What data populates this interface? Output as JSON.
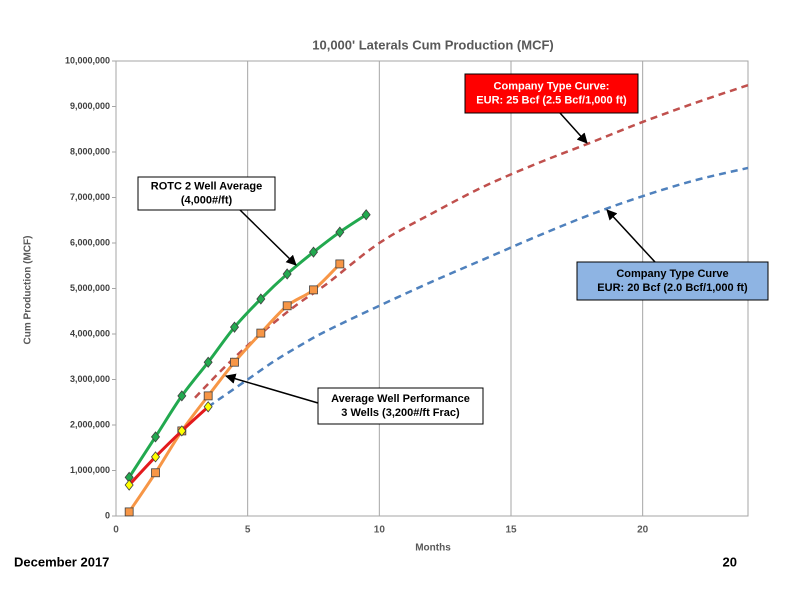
{
  "chart_data": {
    "type": "line",
    "title": "10,000' Laterals Cum Production (MCF)",
    "x_label": "Months",
    "y_label": "Cum Production (MCF)",
    "xlim": [
      0,
      24
    ],
    "xticks": [
      0,
      5,
      10,
      15,
      20
    ],
    "ylim": [
      0,
      10000000
    ],
    "yticks": [
      0,
      {
        "value": 1000000,
        "label": "1,000,000"
      },
      {
        "value": 2000000,
        "label": "2,000,000"
      },
      {
        "value": 3000000,
        "label": "3,000,000"
      },
      {
        "value": 4000000,
        "label": "4,000,000"
      },
      {
        "value": 5000000,
        "label": "5,000,000"
      },
      {
        "value": 6000000,
        "label": "6,000,000"
      },
      {
        "value": 7000000,
        "label": "7,000,000"
      },
      {
        "value": 8000000,
        "label": "8,000,000"
      },
      {
        "value": 9000000,
        "label": "9,000,000"
      },
      {
        "value": 10000000,
        "label": "10,000,000"
      }
    ],
    "grid": "x",
    "series": [
      {
        "color": "#c0504d",
        "dashed": true,
        "x": [
          3,
          4,
          5,
          6,
          7,
          8,
          10,
          12,
          14,
          16,
          18,
          20,
          22,
          24
        ],
        "values": [
          2600000,
          3200000,
          3750000,
          4250000,
          4700000,
          5100000,
          6000000,
          6650000,
          7250000,
          7750000,
          8200000,
          8660000,
          9080000,
          9470000
        ]
      },
      {
        "color": "#4f81bd",
        "dashed": true,
        "x": [
          3.5,
          4,
          5,
          6,
          7,
          8,
          10,
          12,
          14,
          16,
          18,
          20,
          22,
          24
        ],
        "values": [
          2400000,
          2600000,
          3000000,
          3400000,
          3750000,
          4070000,
          4620000,
          5150000,
          5650000,
          6150000,
          6620000,
          7030000,
          7380000,
          7650000
        ]
      },
      {
        "color": "#22a94f",
        "marker": "diamond",
        "marker_color": "#22a94f",
        "x": [
          0.5,
          1.5,
          2.5,
          3.5,
          4.5,
          5.5,
          6.5,
          7.5,
          8.5,
          9.5
        ],
        "values": [
          850000,
          1740000,
          2640000,
          3380000,
          4150000,
          4770000,
          5320000,
          5800000,
          6240000,
          6620000
        ]
      },
      {
        "color": "#f79646",
        "marker": "square",
        "marker_color": "#f79646",
        "x": [
          0.5,
          1.5,
          2.5,
          3.5,
          4.5,
          5.5,
          6.5,
          7.5,
          8.5
        ],
        "values": [
          90000,
          950000,
          1870000,
          2640000,
          3380000,
          4020000,
          4620000,
          4970000,
          5540000
        ]
      },
      {
        "color": "#e31a1c",
        "marker": "diamond",
        "marker_color": "#ffff00",
        "x": [
          0.5,
          1.5,
          2.5,
          3.5
        ],
        "values": [
          680000,
          1300000,
          1870000,
          2400000
        ]
      }
    ],
    "annotations": [
      {
        "lines": [
          "Company Type Curve:",
          "EUR: 25 Bcf (2.5 Bcf/1,000 ft)"
        ],
        "color": "#ff0000",
        "text_color": "#ffffff"
      },
      {
        "lines": [
          "ROTC 2 Well Average",
          "(4,000#/ft)"
        ],
        "color": "#ffffff",
        "text_color": "#000000"
      },
      {
        "lines": [
          "Average Well Performance",
          "3 Wells (3,200#/ft Frac)"
        ],
        "color": "#ffffff",
        "text_color": "#000000"
      },
      {
        "lines": [
          "Company Type Curve",
          "EUR: 20 Bcf (2.0 Bcf/1,000 ft)"
        ],
        "color": "#8eb4e3",
        "text_color": "#000000"
      }
    ]
  },
  "footer": {
    "left": "December 2017",
    "right": "20"
  }
}
